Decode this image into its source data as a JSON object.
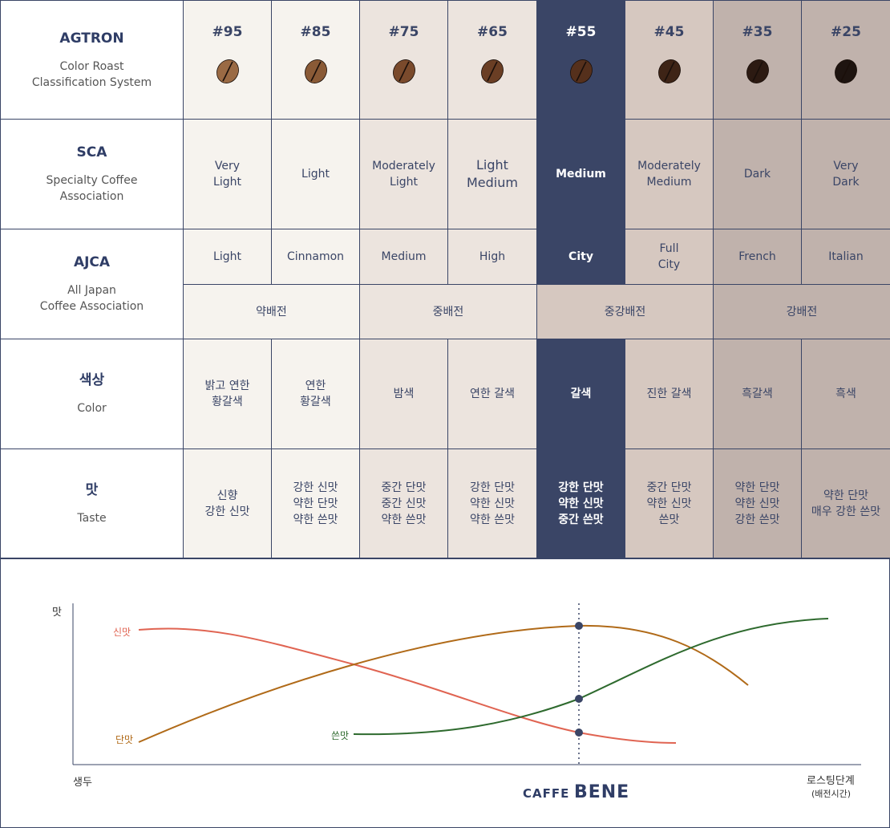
{
  "colors": {
    "navy": "#3a4566",
    "highlight": "#3a4566",
    "col_light": "#f6f3ee",
    "col_medium": "#ece4de",
    "col_medium_dark": "#d6c8c0",
    "col_dark": "#c0b2ac",
    "sour_line": "#e06452",
    "sweet_line": "#b06a18",
    "bitter_line": "#2e6a2e"
  },
  "rows": {
    "agtron": {
      "title": "AGTRON",
      "sub": "Color Roast\nClassification System"
    },
    "sca": {
      "title": "SCA",
      "sub": "Specialty Coffee\nAssociation"
    },
    "ajca": {
      "title": "AJCA",
      "sub": "All Japan\nCoffee Association"
    },
    "color": {
      "title": "색상",
      "sub": "Color"
    },
    "taste": {
      "title": "맛",
      "sub": "Taste"
    }
  },
  "columns": [
    {
      "agtron": "#95",
      "sca": "Very\nLight",
      "ajca": "Light",
      "color": "밝고 연한\n황갈색",
      "taste": "신향\n강한 신맛",
      "bean": "#9a6a44",
      "bg": "#f6f3ee",
      "selected": false
    },
    {
      "agtron": "#85",
      "sca": "Light",
      "ajca": "Cinnamon",
      "color": "연한\n황갈색",
      "taste": "강한 신맛\n약한 단맛\n약한 쓴맛",
      "bean": "#8a5a36",
      "bg": "#f6f3ee",
      "selected": false
    },
    {
      "agtron": "#75",
      "sca": "Moderately\nLight",
      "ajca": "Medium",
      "color": "밤색",
      "taste": "중간 단맛\n중간 신맛\n약한 쓴맛",
      "bean": "#7a4a2c",
      "bg": "#ece4de",
      "selected": false
    },
    {
      "agtron": "#65",
      "sca": "Light\nMedium",
      "ajca": "High",
      "color": "연한 갈색",
      "taste": "강한 단맛\n약한 신맛\n약한 쓴맛",
      "bean": "#6a3e24",
      "bg": "#ece4de",
      "selected": false
    },
    {
      "agtron": "#55",
      "sca": "Medium",
      "ajca": "City",
      "color": "갈색",
      "taste": "강한 단맛\n약한 신맛\n중간 쓴맛",
      "bean": "#55301c",
      "bg": "#3a4566",
      "selected": true
    },
    {
      "agtron": "#45",
      "sca": "Moderately\nMedium",
      "ajca": "Full\nCity",
      "color": "진한 갈색",
      "taste": "중간 단맛\n약한 신맛\n쓴맛",
      "bean": "#3e2416",
      "bg": "#d6c8c0",
      "selected": false
    },
    {
      "agtron": "#35",
      "sca": "Dark",
      "ajca": "French",
      "color": "흑갈색",
      "taste": "약한 단맛\n약한 신맛\n강한 쓴맛",
      "bean": "#2c1a12",
      "bg": "#c0b2ac",
      "selected": false
    },
    {
      "agtron": "#25",
      "sca": "Very\nDark",
      "ajca": "Italian",
      "color": "흑색",
      "taste": "약한 단맛\n매우 강한 쓴맛",
      "bean": "#1e1410",
      "bg": "#c0b2ac",
      "selected": false
    }
  ],
  "roast_groups": [
    {
      "label": "약배전",
      "span": 2,
      "bg": "#f6f3ee"
    },
    {
      "label": "중배전",
      "span": 2,
      "bg": "#ece4de"
    },
    {
      "label": "중강배전",
      "span": 2,
      "bg": "#d6c8c0"
    },
    {
      "label": "강배전",
      "span": 2,
      "bg": "#c0b2ac"
    }
  ],
  "chart": {
    "y_label": "맛",
    "x_start": "생두",
    "x_end": "로스팅단계",
    "x_end_sub": "(배전시간)",
    "sour_label": "신맛",
    "sweet_label": "단맛",
    "bitter_label": "쓴맛",
    "logo_a": "CAFFE",
    "logo_b": "BENE"
  }
}
